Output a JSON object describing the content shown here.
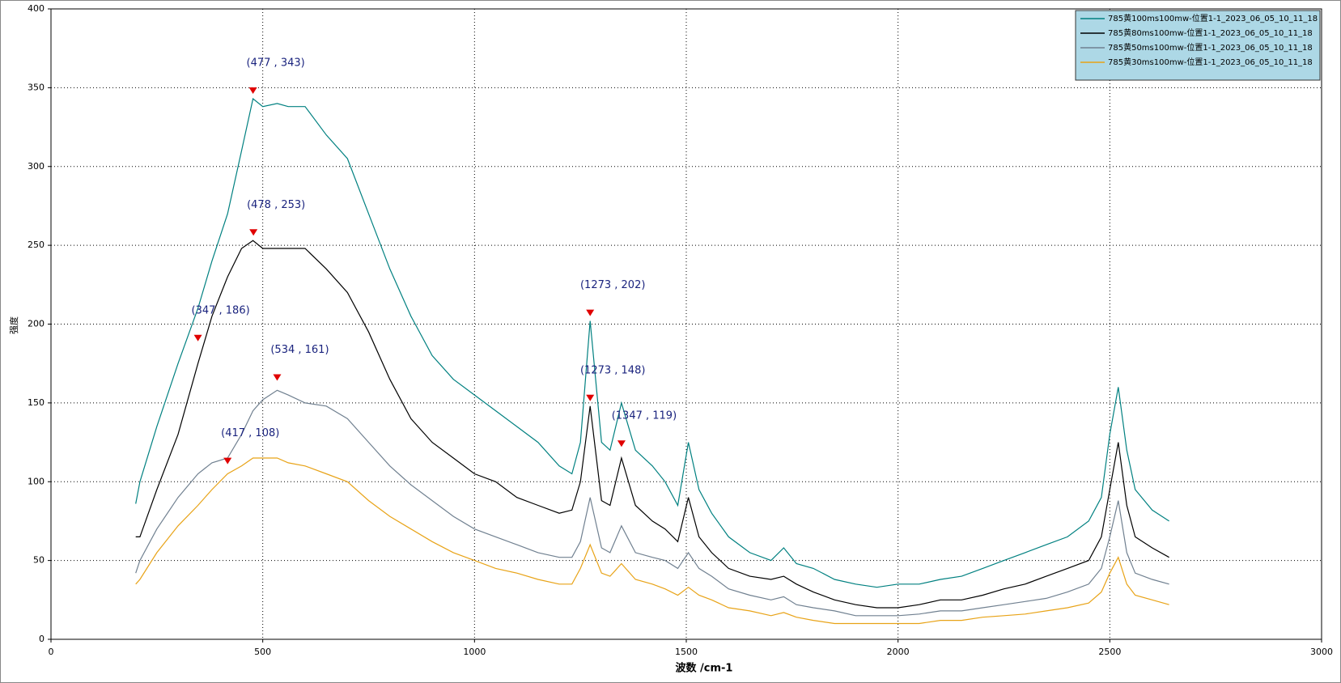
{
  "chart_data": {
    "type": "line",
    "xlabel": "波数 /cm-1",
    "ylabel": "强度",
    "xlim": [
      0,
      3000
    ],
    "xticks": [
      0,
      500,
      1000,
      1500,
      2000,
      2500,
      3000
    ],
    "ylim": [
      0,
      400
    ],
    "yticks": [
      0,
      50,
      100,
      150,
      200,
      250,
      300,
      350,
      400
    ],
    "grid": true,
    "legend": "upper right",
    "x": [
      200,
      210,
      250,
      300,
      347,
      380,
      417,
      450,
      477,
      500,
      534,
      560,
      600,
      650,
      700,
      750,
      800,
      850,
      900,
      950,
      1000,
      1050,
      1100,
      1150,
      1200,
      1230,
      1250,
      1273,
      1300,
      1320,
      1347,
      1380,
      1420,
      1450,
      1480,
      1505,
      1530,
      1560,
      1600,
      1650,
      1700,
      1730,
      1760,
      1800,
      1850,
      1900,
      1950,
      2000,
      2050,
      2100,
      2150,
      2200,
      2250,
      2300,
      2350,
      2400,
      2450,
      2480,
      2500,
      2520,
      2540,
      2560,
      2600,
      2640
    ],
    "series": [
      {
        "name": "785黄100ms100mw-位置1-1_2023_06_05_10_11_18",
        "color": "#008080",
        "values": [
          86,
          100,
          135,
          175,
          210,
          240,
          270,
          310,
          343,
          338,
          340,
          338,
          338,
          320,
          305,
          270,
          235,
          205,
          180,
          165,
          155,
          145,
          135,
          125,
          110,
          105,
          125,
          202,
          125,
          120,
          150,
          120,
          110,
          100,
          85,
          125,
          95,
          80,
          65,
          55,
          50,
          58,
          48,
          45,
          38,
          35,
          33,
          35,
          35,
          38,
          40,
          45,
          50,
          55,
          60,
          65,
          75,
          90,
          130,
          160,
          120,
          95,
          82,
          75
        ]
      },
      {
        "name": "785黄80ms100mw-位置1-1_2023_06_05_10_11_18",
        "color": "#000000",
        "values": [
          65,
          65,
          95,
          130,
          175,
          205,
          230,
          248,
          253,
          248,
          248,
          248,
          248,
          235,
          220,
          195,
          165,
          140,
          125,
          115,
          105,
          100,
          90,
          85,
          80,
          82,
          100,
          148,
          88,
          85,
          115,
          85,
          75,
          70,
          62,
          90,
          65,
          55,
          45,
          40,
          38,
          40,
          35,
          30,
          25,
          22,
          20,
          20,
          22,
          25,
          25,
          28,
          32,
          35,
          40,
          45,
          50,
          65,
          95,
          125,
          85,
          65,
          58,
          52
        ]
      },
      {
        "name": "785黄50ms100mw-位置1-1_2023_06_05_10_11_18",
        "color": "#708090",
        "values": [
          42,
          50,
          70,
          90,
          105,
          112,
          115,
          130,
          145,
          152,
          158,
          155,
          150,
          148,
          140,
          125,
          110,
          98,
          88,
          78,
          70,
          65,
          60,
          55,
          52,
          52,
          62,
          90,
          58,
          55,
          72,
          55,
          52,
          50,
          45,
          55,
          45,
          40,
          32,
          28,
          25,
          27,
          22,
          20,
          18,
          15,
          15,
          15,
          16,
          18,
          18,
          20,
          22,
          24,
          26,
          30,
          35,
          45,
          65,
          88,
          55,
          42,
          38,
          35
        ]
      },
      {
        "name": "785黄30ms100mw-位置1-1_2023_06_05_10_11_18",
        "color": "#e8a317",
        "values": [
          35,
          38,
          55,
          72,
          85,
          95,
          105,
          110,
          115,
          115,
          115,
          112,
          110,
          105,
          100,
          88,
          78,
          70,
          62,
          55,
          50,
          45,
          42,
          38,
          35,
          35,
          45,
          60,
          42,
          40,
          48,
          38,
          35,
          32,
          28,
          33,
          28,
          25,
          20,
          18,
          15,
          17,
          14,
          12,
          10,
          10,
          10,
          10,
          10,
          12,
          12,
          14,
          15,
          16,
          18,
          20,
          23,
          30,
          42,
          52,
          35,
          28,
          25,
          22
        ]
      }
    ],
    "annotations": [
      {
        "text": "(477 , 343)",
        "x": 477,
        "y": 343
      },
      {
        "text": "(478 , 253)",
        "x": 478,
        "y": 253
      },
      {
        "text": "(347 , 186)",
        "x": 347,
        "y": 186
      },
      {
        "text": "(534 , 161)",
        "x": 534,
        "y": 161
      },
      {
        "text": "(1273 , 202)",
        "x": 1273,
        "y": 202
      },
      {
        "text": "(1273 , 148)",
        "x": 1273,
        "y": 148
      },
      {
        "text": "(1347 , 119)",
        "x": 1347,
        "y": 119
      },
      {
        "text": "(417 , 108)",
        "x": 417,
        "y": 108
      }
    ]
  }
}
